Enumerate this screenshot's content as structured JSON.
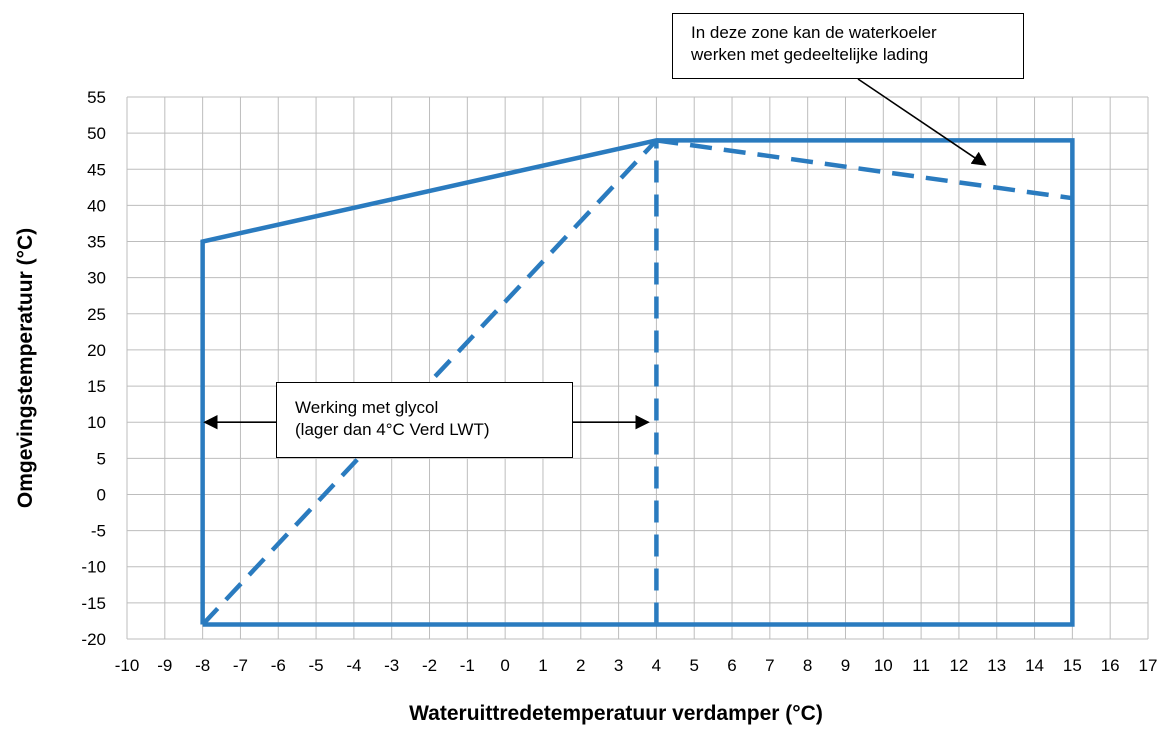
{
  "chart_data": {
    "type": "line",
    "xlabel": "Wateruittredetemperatuur verdamper (°C)",
    "ylabel": "Omgevingstemperatuur (°C)",
    "xlim": [
      -10,
      17
    ],
    "ylim": [
      -20,
      55
    ],
    "xticks": [
      "-10",
      "-9",
      "-8",
      "-7",
      "-6",
      "-5",
      "-4",
      "-3",
      "-2",
      "-1",
      "0",
      "1",
      "2",
      "3",
      "4",
      "5",
      "6",
      "7",
      "8",
      "9",
      "10",
      "11",
      "12",
      "13",
      "14",
      "15",
      "16",
      "17"
    ],
    "yticks": [
      "55",
      "50",
      "45",
      "40",
      "35",
      "30",
      "25",
      "20",
      "15",
      "10",
      "5",
      "0",
      "-5",
      "-10",
      "-15",
      "-20"
    ],
    "grid": true,
    "color": "#2a7bbf",
    "series": [
      {
        "style": "solid",
        "x": [
          -8,
          -8,
          4,
          15,
          15,
          -8
        ],
        "y": [
          -18,
          35,
          49,
          49,
          -18,
          -18
        ]
      },
      {
        "style": "dashed",
        "x": [
          -8,
          4
        ],
        "y": [
          -18,
          49
        ]
      },
      {
        "style": "dashed",
        "x": [
          4,
          4
        ],
        "y": [
          -18,
          49
        ]
      },
      {
        "style": "dashed",
        "x": [
          4,
          15
        ],
        "y": [
          49,
          41
        ]
      }
    ],
    "annotations": [
      {
        "id": "partial_load",
        "lines": [
          "In deze zone kan de waterkoeler",
          "werken met gedeeltelijke lading"
        ],
        "arrow_to": [
          12.7,
          45.6
        ]
      },
      {
        "id": "glycol",
        "lines": [
          "Werking met glycol",
          "(lager dan 4°C Verd LWT)"
        ],
        "arrow_range": [
          -8,
          4
        ],
        "arrow_y": 10
      }
    ]
  }
}
